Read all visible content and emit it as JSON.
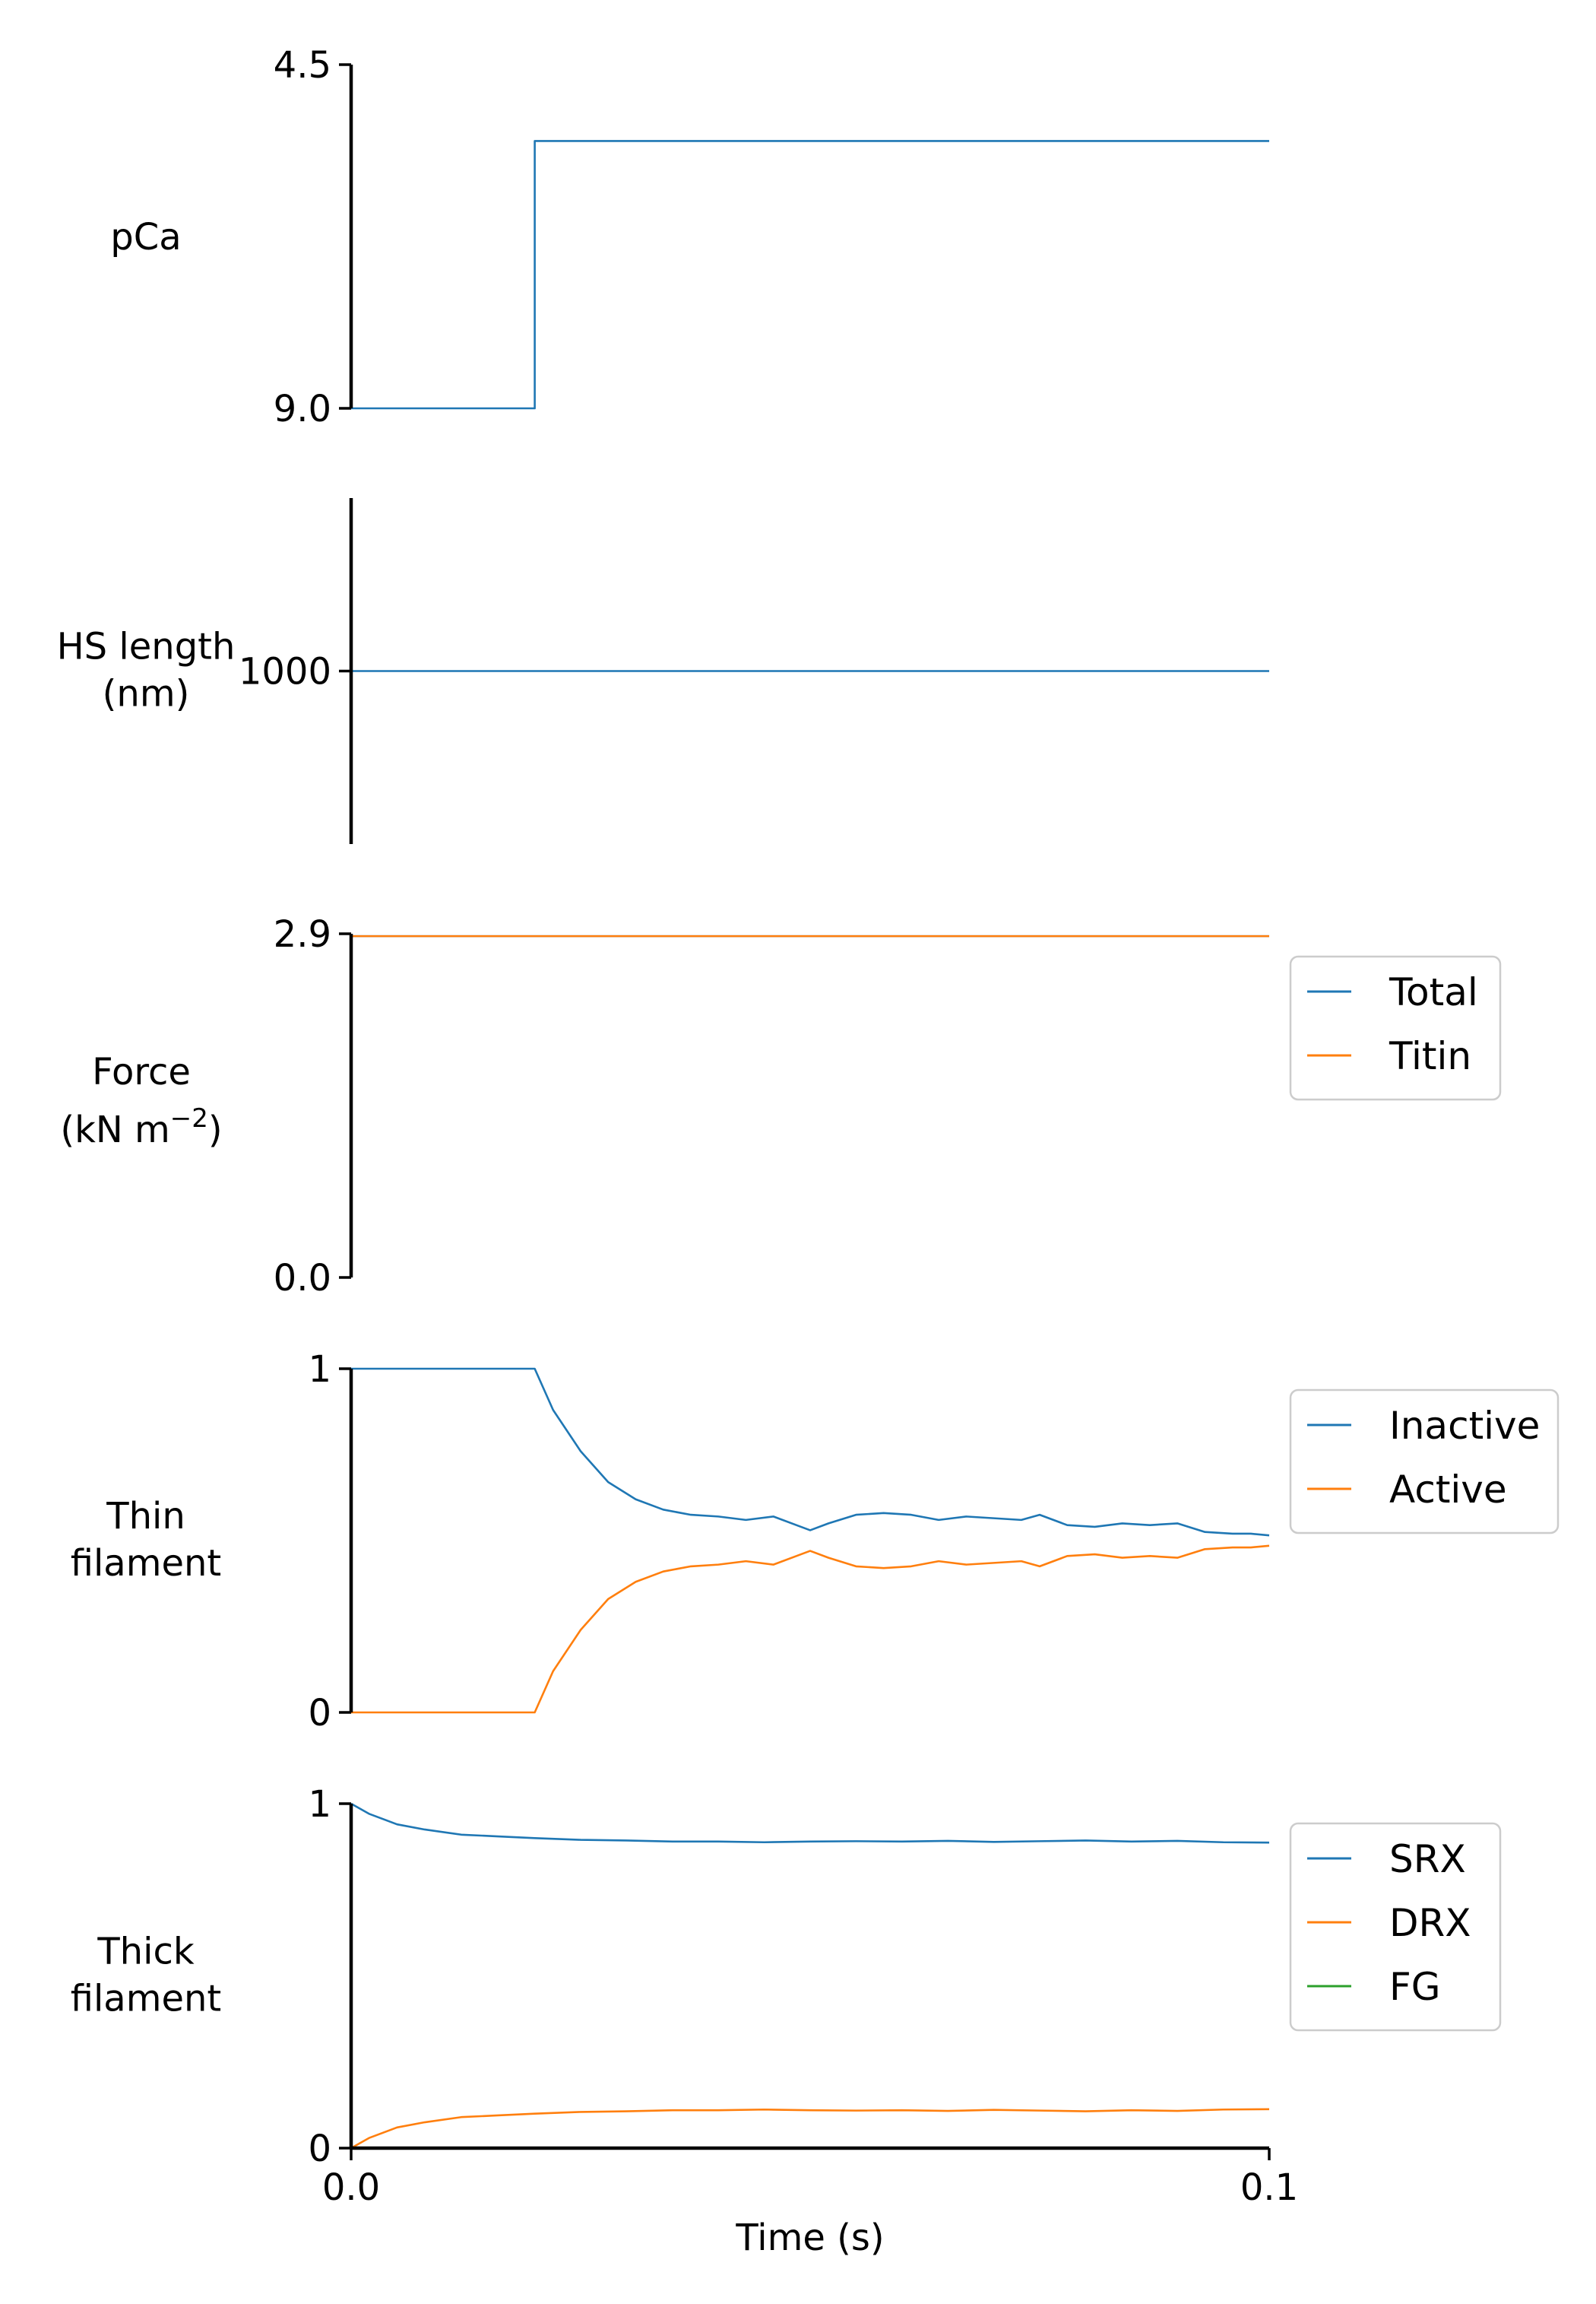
{
  "chart_data": [
    {
      "type": "line",
      "ylabel": [
        "pCa"
      ],
      "xlim": [
        0.0,
        0.1
      ],
      "ylim": [
        9.0,
        4.5
      ],
      "y_inverted": true,
      "yticks": [
        "4.5",
        "9.0"
      ],
      "ytick_values": [
        4.5,
        9.0
      ],
      "series": [
        {
          "color": "#1f77b4",
          "x": [
            0.0,
            0.02,
            0.02,
            0.1
          ],
          "y": [
            9.0,
            9.0,
            5.5,
            5.5
          ]
        }
      ]
    },
    {
      "type": "line",
      "ylabel": [
        "HS length",
        "(nm)"
      ],
      "xlim": [
        0.0,
        0.1
      ],
      "ylim": [
        900,
        1100
      ],
      "yticks": [
        "1000"
      ],
      "ytick_values": [
        1000
      ],
      "series": [
        {
          "color": "#1f77b4",
          "x": [
            0.0,
            0.1
          ],
          "y": [
            1000,
            1000
          ]
        }
      ]
    },
    {
      "type": "line",
      "ylabel": [
        "Force",
        "(kN m",
        "−2",
        ")"
      ],
      "xlim": [
        0.0,
        0.1
      ],
      "ylim": [
        0.0,
        2.9
      ],
      "yticks": [
        "2.9",
        "0.0"
      ],
      "ytick_values": [
        2.9,
        0.0
      ],
      "legend": {
        "position": "right",
        "entries": [
          "Total",
          "Titin"
        ]
      },
      "series": [
        {
          "name": "Total",
          "color": "#1f77b4",
          "x": [
            0.0,
            0.1
          ],
          "y": [
            2.88,
            2.88
          ]
        },
        {
          "name": "Titin",
          "color": "#ff7f0e",
          "x": [
            0.0,
            0.1
          ],
          "y": [
            2.88,
            2.88
          ]
        }
      ]
    },
    {
      "type": "line",
      "ylabel": [
        "Thin",
        "filament"
      ],
      "xlim": [
        0.0,
        0.1
      ],
      "ylim": [
        0,
        1
      ],
      "yticks": [
        "1",
        "0"
      ],
      "ytick_values": [
        1,
        0
      ],
      "legend": {
        "position": "right",
        "entries": [
          "Inactive",
          "Active"
        ]
      },
      "series": [
        {
          "name": "Inactive",
          "color": "#1f77b4",
          "x": [
            0.0,
            0.02,
            0.022,
            0.025,
            0.028,
            0.031,
            0.034,
            0.037,
            0.04,
            0.043,
            0.046,
            0.049,
            0.05,
            0.052,
            0.055,
            0.058,
            0.061,
            0.064,
            0.067,
            0.07,
            0.073,
            0.075,
            0.078,
            0.081,
            0.084,
            0.087,
            0.09,
            0.093,
            0.096,
            0.098,
            0.1
          ],
          "y": [
            1.0,
            1.0,
            0.88,
            0.76,
            0.67,
            0.62,
            0.59,
            0.575,
            0.57,
            0.56,
            0.57,
            0.54,
            0.53,
            0.55,
            0.575,
            0.58,
            0.575,
            0.56,
            0.57,
            0.565,
            0.56,
            0.575,
            0.545,
            0.54,
            0.55,
            0.545,
            0.55,
            0.525,
            0.52,
            0.52,
            0.515
          ]
        },
        {
          "name": "Active",
          "color": "#ff7f0e",
          "x": [
            0.0,
            0.02,
            0.022,
            0.025,
            0.028,
            0.031,
            0.034,
            0.037,
            0.04,
            0.043,
            0.046,
            0.049,
            0.05,
            0.052,
            0.055,
            0.058,
            0.061,
            0.064,
            0.067,
            0.07,
            0.073,
            0.075,
            0.078,
            0.081,
            0.084,
            0.087,
            0.09,
            0.093,
            0.096,
            0.098,
            0.1
          ],
          "y": [
            0.0,
            0.0,
            0.12,
            0.24,
            0.33,
            0.38,
            0.41,
            0.425,
            0.43,
            0.44,
            0.43,
            0.46,
            0.47,
            0.45,
            0.425,
            0.42,
            0.425,
            0.44,
            0.43,
            0.435,
            0.44,
            0.425,
            0.455,
            0.46,
            0.45,
            0.455,
            0.45,
            0.475,
            0.48,
            0.48,
            0.485
          ]
        }
      ]
    },
    {
      "type": "line",
      "ylabel": [
        "Thick",
        "filament"
      ],
      "xlabel": "Time (s)",
      "xlim": [
        0.0,
        0.1
      ],
      "ylim": [
        0,
        1
      ],
      "xticks": [
        "0.0",
        "0.1"
      ],
      "xtick_values": [
        0.0,
        0.1
      ],
      "yticks": [
        "1",
        "0"
      ],
      "ytick_values": [
        1,
        0
      ],
      "legend": {
        "position": "right",
        "entries": [
          "SRX",
          "DRX",
          "FG"
        ]
      },
      "series": [
        {
          "name": "SRX",
          "color": "#1f77b4",
          "x": [
            0.0,
            0.002,
            0.005,
            0.008,
            0.012,
            0.016,
            0.02,
            0.025,
            0.03,
            0.035,
            0.04,
            0.045,
            0.05,
            0.055,
            0.06,
            0.065,
            0.07,
            0.075,
            0.08,
            0.085,
            0.09,
            0.095,
            0.1
          ],
          "y": [
            1.0,
            0.97,
            0.94,
            0.925,
            0.91,
            0.905,
            0.9,
            0.895,
            0.893,
            0.89,
            0.89,
            0.888,
            0.89,
            0.891,
            0.89,
            0.892,
            0.889,
            0.891,
            0.893,
            0.89,
            0.892,
            0.888,
            0.887
          ]
        },
        {
          "name": "DRX",
          "color": "#ff7f0e",
          "x": [
            0.0,
            0.002,
            0.005,
            0.008,
            0.012,
            0.016,
            0.02,
            0.025,
            0.03,
            0.035,
            0.04,
            0.045,
            0.05,
            0.055,
            0.06,
            0.065,
            0.07,
            0.075,
            0.08,
            0.085,
            0.09,
            0.095,
            0.1
          ],
          "y": [
            0.0,
            0.03,
            0.06,
            0.075,
            0.09,
            0.095,
            0.1,
            0.105,
            0.107,
            0.11,
            0.11,
            0.112,
            0.11,
            0.109,
            0.11,
            0.108,
            0.111,
            0.109,
            0.107,
            0.11,
            0.108,
            0.112,
            0.113
          ]
        },
        {
          "name": "FG",
          "color": "#2ca02c",
          "x": [
            0.0,
            0.1
          ],
          "y": [
            0.0,
            0.0
          ]
        }
      ]
    }
  ]
}
